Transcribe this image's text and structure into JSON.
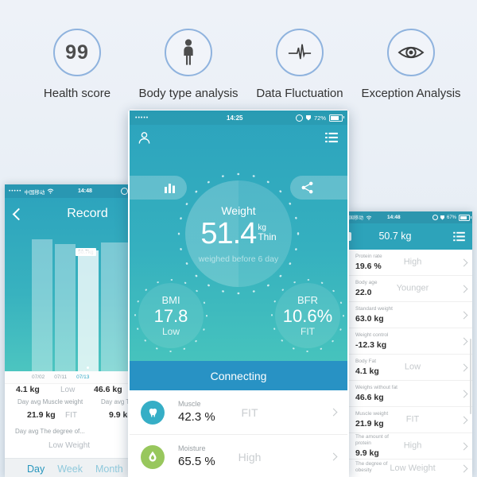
{
  "features": [
    {
      "label": "Health score",
      "icon": "score-99"
    },
    {
      "label": "Body type analysis",
      "icon": "body-silhouette"
    },
    {
      "label": "Data Fluctuation",
      "icon": "ecg-line"
    },
    {
      "label": "Exception Analysis",
      "icon": "eye"
    }
  ],
  "health_score_value": "99",
  "left_phone": {
    "status_dots": "•••••",
    "carrier": "中国移动",
    "time": "14:48",
    "title": "Record",
    "chart_data": {
      "type": "bar",
      "categories": [
        "07/02",
        "07/11",
        "07/13"
      ],
      "values": [
        51.4,
        51.1,
        50.7
      ],
      "partial_extra_bar": 51.2,
      "unit": "kg",
      "highlighted_index": 2,
      "highlight_label": "50.7kg",
      "title": "",
      "xlabel": "",
      "ylabel": ""
    },
    "dates": [
      "07/02",
      "07/11",
      "07/13"
    ],
    "active_date": "07/13",
    "partial_row": {
      "value_left": "4.1 kg",
      "status": "Low",
      "value_right": "46.6 kg"
    },
    "avg_row": {
      "label_left": "Day avg Muscle weight",
      "label_right": "Day avg The",
      "value_left": "21.9 kg",
      "status_left": "FIT",
      "value_right": "9.9 kg"
    },
    "degree_row": {
      "label": "Day avg The degree of...",
      "status": "Low Weight"
    },
    "tabs": [
      {
        "label": "Day"
      },
      {
        "label": "Week"
      },
      {
        "label": "Month"
      }
    ],
    "active_tab": "Day"
  },
  "center_phone": {
    "status_dots": "•••••",
    "time": "14:25",
    "battery": "72%",
    "weight_label": "Weight",
    "weight_value": "51.4",
    "weight_unit": "kg",
    "weight_status": "Thin",
    "weight_note": "weighed before 6 day",
    "bmi": {
      "label": "BMI",
      "value": "17.8",
      "status": "Low"
    },
    "bfr": {
      "label": "BFR",
      "value": "10.6%",
      "status": "FIT"
    },
    "connect_label": "Connecting",
    "metrics": [
      {
        "name": "Muscle",
        "value": "42.3 %",
        "status": "FIT",
        "color": "#36aec6",
        "icon": "muscle"
      },
      {
        "name": "Moisture",
        "value": "65.5 %",
        "status": "High",
        "color": "#98c75d",
        "icon": "water-drop"
      }
    ]
  },
  "right_phone": {
    "carrier": "中国移动",
    "time": "14:48",
    "battery": "67%",
    "title": "50.7 kg",
    "rows": [
      {
        "label": "Protein rate",
        "value": "19.6 %",
        "status": "High"
      },
      {
        "label": "Body age",
        "value": "22.0",
        "status": "Younger"
      },
      {
        "label": "Standard weight",
        "value": "63.0 kg",
        "status": ""
      },
      {
        "label": "Weight control",
        "value": "-12.3 kg",
        "status": ""
      },
      {
        "label": "Body Fat",
        "value": "4.1 kg",
        "status": "Low"
      },
      {
        "label": "Weighs without fat",
        "value": "46.6 kg",
        "status": ""
      },
      {
        "label": "Muscle weight",
        "value": "21.9 kg",
        "status": "FIT"
      },
      {
        "label": "The amount of protein",
        "value": "9.9 kg",
        "status": "High"
      },
      {
        "label": "The degree of obesity",
        "value": "",
        "status": "Low Weight"
      }
    ]
  },
  "colors": {
    "teal_top": "#2ca3bd",
    "teal_bottom": "#46c3bd",
    "connect_blue": "#2892c4",
    "feature_ring": "#8fb3de",
    "accent_teal": "#2aa6c5",
    "muscle_icon": "#36aec6",
    "moisture_icon": "#98c75d"
  }
}
